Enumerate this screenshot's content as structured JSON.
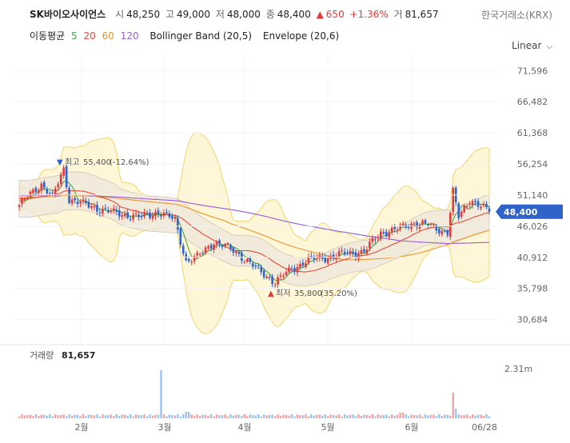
{
  "header": {
    "stock_name": "SK바이오사이언스",
    "open_label": "시",
    "open": "48,250",
    "high_label": "고",
    "high": "49,000",
    "low_label": "저",
    "low": "48,000",
    "close_label": "종",
    "close": "48,400",
    "change_arrow": "▲",
    "change": "650",
    "change_pct": "+1.36%",
    "volume_label": "거",
    "volume": "81,657",
    "exchange": "한국거래소(KRX)"
  },
  "indicators": {
    "ma_label": "이동평균",
    "ma_periods": [
      "5",
      "20",
      "60",
      "120"
    ],
    "bollinger": "Bollinger Band (20,5)",
    "envelope": "Envelope (20,6)"
  },
  "scale": {
    "label": "Linear"
  },
  "colors": {
    "up": "#e03b3b",
    "down": "#2f63c9",
    "ma5": "#49a84c",
    "ma20": "#e04b3a",
    "ma60": "#e8952b",
    "ma120": "#9b5bd6",
    "volume_up": "#f2a4a4",
    "volume_down": "#9ec4ea",
    "last_price_tag": "#2f63c9",
    "bollinger_fill": "#fff6d8",
    "envelope_fill": "#ede6dc"
  },
  "chart_data": {
    "type": "candlestick",
    "y_ticks": [
      "71,596",
      "66,482",
      "61,368",
      "56,254",
      "51,140",
      "46,026",
      "40,912",
      "35,798",
      "30,684"
    ],
    "ylim": [
      28000,
      74000
    ],
    "x_ticks": [
      "2월",
      "3월",
      "4월",
      "5월",
      "6월",
      "06/28"
    ],
    "last_price": "48,400",
    "annotations": {
      "high": {
        "label": "최고",
        "value": "55,400",
        "pct": "(-12.64%)"
      },
      "low": {
        "label": "최저",
        "value": "35,800",
        "pct": "(35.20%)"
      }
    },
    "volume": {
      "label": "거래량",
      "value": "81,657",
      "y_tick": "2.31m"
    },
    "series": [
      {
        "name": "5",
        "type": "line"
      },
      {
        "name": "20",
        "type": "line"
      },
      {
        "name": "60",
        "type": "line"
      },
      {
        "name": "120",
        "type": "line"
      }
    ]
  }
}
